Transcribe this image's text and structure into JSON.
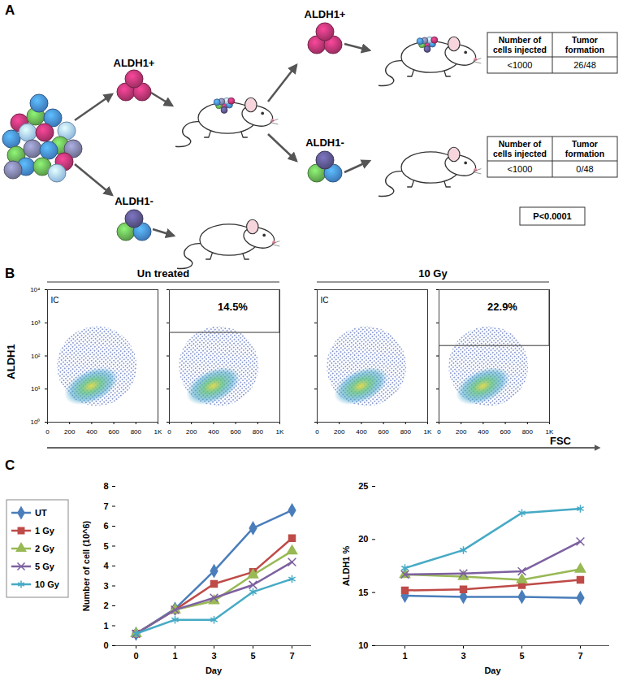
{
  "panel_labels": [
    "A",
    "B",
    "C"
  ],
  "diagram": {
    "sort_1": [
      {
        "label": "ALDH1+",
        "tumor": true,
        "sort_2": [
          {
            "label": "ALDH1+",
            "tumor": true,
            "table": {
              "header": [
                "Number of cells injected",
                "Tumor formation"
              ],
              "row": [
                "<1000",
                "26/48"
              ]
            }
          },
          {
            "label": "ALDH1-",
            "tumor": false,
            "table": {
              "header": [
                "Number of cells injected",
                "Tumor formation"
              ],
              "row": [
                "<1000",
                "0/48"
              ]
            }
          }
        ]
      },
      {
        "label": "ALDH1-",
        "tumor": false
      }
    ],
    "p_value": "P<0.0001"
  },
  "flow_cytometry": {
    "y_label": "ALDH1",
    "x_label": "FSC",
    "xlim": [
      0,
      1000
    ],
    "xticks": [
      0,
      200,
      400,
      600,
      800,
      {
        "value": 1000,
        "label": "1K"
      }
    ],
    "ylim": [
      1,
      10000
    ],
    "yticks": [
      {
        "value": 1,
        "label": "10⁰"
      },
      {
        "value": 10,
        "label": "10¹"
      },
      {
        "value": 100,
        "label": "10²"
      },
      {
        "value": 1000,
        "label": "10³"
      },
      {
        "value": 10000,
        "label": "10⁴"
      }
    ],
    "log": "y",
    "groups": [
      {
        "title": "Un treated",
        "plots": [
          {
            "label": "IC",
            "tick_labels": true
          },
          {
            "gate": {
              "x": [
                0,
                1000
              ],
              "y": [
                500,
                10000
              ]
            },
            "gate_label": "14.5%",
            "tick_labels": "x"
          }
        ]
      },
      {
        "title": "10 Gy",
        "plots": [
          {
            "label": "IC",
            "tick_labels": "x"
          },
          {
            "gate": {
              "x": [
                0,
                1000
              ],
              "y": [
                200,
                10000
              ]
            },
            "gate_label": "22.9%",
            "tick_labels": "x"
          }
        ]
      }
    ]
  },
  "chart_data": [
    {
      "type": "line",
      "categories": [
        "0",
        "1",
        "3",
        "5",
        "7"
      ],
      "x_label": "Day",
      "y_label": "Number of cell (10^6)",
      "ylim": [
        0,
        8
      ],
      "yticks": [
        0,
        1,
        2,
        3,
        4,
        5,
        6,
        7,
        8
      ],
      "legend": "left",
      "series": [
        {
          "name": "UT",
          "color": "#4a7ebb",
          "marker": "diamond",
          "values": [
            0.6,
            1.85,
            3.75,
            5.9,
            6.8
          ]
        },
        {
          "name": "1 Gy",
          "color": "#be4b48",
          "marker": "square",
          "values": [
            0.6,
            1.8,
            3.1,
            3.7,
            5.4
          ]
        },
        {
          "name": "2 Gy",
          "color": "#98b954",
          "marker": "triangle",
          "values": [
            0.6,
            1.8,
            2.25,
            3.55,
            4.75
          ]
        },
        {
          "name": "5 Gy",
          "color": "#7d60a0",
          "marker": "times",
          "values": [
            0.6,
            1.8,
            2.4,
            3.05,
            4.2
          ]
        },
        {
          "name": "10 Gy",
          "color": "#46aac5",
          "marker": "asterisk",
          "values": [
            0.6,
            1.3,
            1.3,
            2.7,
            3.35
          ]
        }
      ]
    },
    {
      "type": "line",
      "categories": [
        "1",
        "3",
        "5",
        "7"
      ],
      "x_label": "Day",
      "y_label": "ALDH1 %",
      "ylim": [
        10,
        25
      ],
      "yticks": [
        10,
        15,
        20,
        25
      ],
      "series": [
        {
          "name": "UT",
          "color": "#4a7ebb",
          "marker": "diamond",
          "values": [
            14.7,
            14.6,
            14.6,
            14.5
          ]
        },
        {
          "name": "1 Gy",
          "color": "#be4b48",
          "marker": "square",
          "values": [
            15.2,
            15.3,
            15.7,
            16.2
          ]
        },
        {
          "name": "2 Gy",
          "color": "#98b954",
          "marker": "triangle",
          "values": [
            16.7,
            16.5,
            16.2,
            17.2
          ]
        },
        {
          "name": "5 Gy",
          "color": "#7d60a0",
          "marker": "times",
          "values": [
            16.7,
            16.8,
            17.0,
            19.8
          ]
        },
        {
          "name": "10 Gy",
          "color": "#46aac5",
          "marker": "asterisk",
          "values": [
            17.3,
            19.0,
            22.5,
            22.9
          ]
        }
      ]
    }
  ]
}
